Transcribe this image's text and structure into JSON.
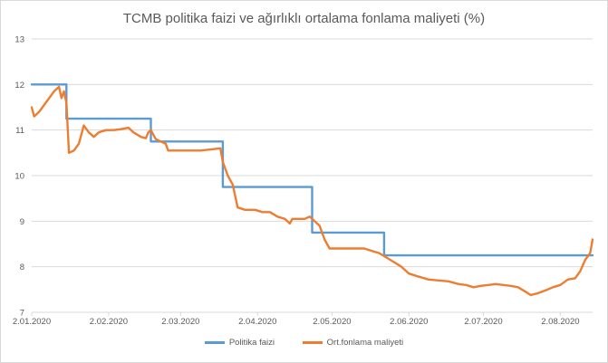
{
  "chart_data": {
    "type": "line",
    "title": "TCMB politika faizi ve ağırlıklı ortalama fonlama maliyeti (%)",
    "xlabel": "",
    "ylabel": "",
    "ylim": [
      7,
      13
    ],
    "yticks": [
      7,
      8,
      9,
      10,
      11,
      12,
      13
    ],
    "x_tick_labels": [
      "2.01.2020",
      "2.02.2020",
      "2.03.2020",
      "2.04.2020",
      "2.05.2020",
      "2.06.2020",
      "2.07.2020",
      "2.08.2020"
    ],
    "x_tick_days": [
      0,
      31,
      60,
      91,
      121,
      152,
      182,
      213
    ],
    "grid": true,
    "legend_position": "bottom",
    "series": [
      {
        "name": "Politika faizi",
        "color": "#5b9bd5",
        "points": [
          [
            0,
            12.0
          ],
          [
            14,
            12.0
          ],
          [
            14,
            11.25
          ],
          [
            48,
            11.25
          ],
          [
            48,
            10.75
          ],
          [
            77,
            10.75
          ],
          [
            77,
            9.75
          ],
          [
            113,
            9.75
          ],
          [
            113,
            8.75
          ],
          [
            142,
            8.75
          ],
          [
            142,
            8.25
          ],
          [
            226,
            8.25
          ]
        ]
      },
      {
        "name": "Ort.fonlama maliyeti",
        "color": "#ed7d31",
        "points": [
          [
            0,
            11.5
          ],
          [
            1,
            11.3
          ],
          [
            3,
            11.4
          ],
          [
            5,
            11.55
          ],
          [
            7,
            11.7
          ],
          [
            9,
            11.85
          ],
          [
            11,
            11.95
          ],
          [
            12,
            11.7
          ],
          [
            13,
            11.85
          ],
          [
            14,
            11.6
          ],
          [
            15,
            10.5
          ],
          [
            17,
            10.55
          ],
          [
            19,
            10.7
          ],
          [
            21,
            11.1
          ],
          [
            23,
            10.95
          ],
          [
            25,
            10.85
          ],
          [
            27,
            10.95
          ],
          [
            30,
            11.0
          ],
          [
            33,
            11.0
          ],
          [
            36,
            11.02
          ],
          [
            39,
            11.05
          ],
          [
            41,
            10.95
          ],
          [
            44,
            10.85
          ],
          [
            46,
            10.82
          ],
          [
            47,
            10.95
          ],
          [
            48,
            11.0
          ],
          [
            50,
            10.8
          ],
          [
            52,
            10.75
          ],
          [
            54,
            10.7
          ],
          [
            55,
            10.55
          ],
          [
            58,
            10.55
          ],
          [
            63,
            10.55
          ],
          [
            68,
            10.55
          ],
          [
            73,
            10.58
          ],
          [
            76,
            10.6
          ],
          [
            77,
            10.3
          ],
          [
            79,
            10.0
          ],
          [
            81,
            9.8
          ],
          [
            83,
            9.3
          ],
          [
            86,
            9.25
          ],
          [
            90,
            9.25
          ],
          [
            93,
            9.2
          ],
          [
            96,
            9.2
          ],
          [
            99,
            9.1
          ],
          [
            102,
            9.05
          ],
          [
            104,
            8.95
          ],
          [
            105,
            9.05
          ],
          [
            108,
            9.05
          ],
          [
            110,
            9.05
          ],
          [
            112,
            9.1
          ],
          [
            114,
            9.0
          ],
          [
            116,
            8.9
          ],
          [
            118,
            8.6
          ],
          [
            120,
            8.4
          ],
          [
            125,
            8.4
          ],
          [
            129,
            8.4
          ],
          [
            134,
            8.4
          ],
          [
            137,
            8.35
          ],
          [
            140,
            8.3
          ],
          [
            143,
            8.2
          ],
          [
            146,
            8.1
          ],
          [
            149,
            8.0
          ],
          [
            152,
            7.85
          ],
          [
            156,
            7.78
          ],
          [
            160,
            7.72
          ],
          [
            164,
            7.7
          ],
          [
            168,
            7.68
          ],
          [
            172,
            7.62
          ],
          [
            175,
            7.6
          ],
          [
            178,
            7.55
          ],
          [
            181,
            7.58
          ],
          [
            184,
            7.6
          ],
          [
            187,
            7.62
          ],
          [
            190,
            7.6
          ],
          [
            193,
            7.58
          ],
          [
            196,
            7.55
          ],
          [
            199,
            7.45
          ],
          [
            201,
            7.38
          ],
          [
            204,
            7.42
          ],
          [
            207,
            7.48
          ],
          [
            210,
            7.55
          ],
          [
            213,
            7.6
          ],
          [
            216,
            7.72
          ],
          [
            219,
            7.75
          ],
          [
            221,
            7.9
          ],
          [
            223,
            8.15
          ],
          [
            225,
            8.3
          ],
          [
            226,
            8.6
          ]
        ]
      }
    ]
  }
}
